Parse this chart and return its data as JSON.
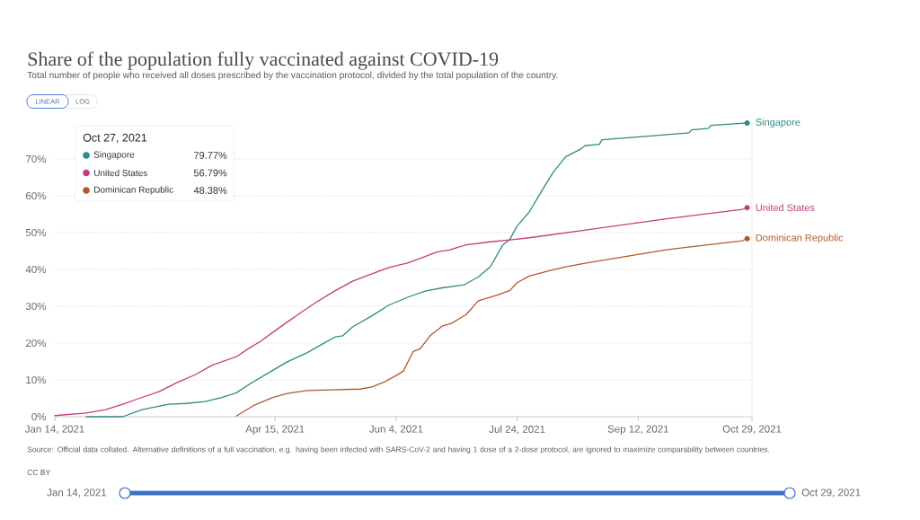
{
  "chart_data": {
    "type": "line",
    "title": "Share of the population fully vaccinated against COVID-19",
    "subtitle": "Total number of people who received all doses prescribed by the vaccination protocol, divided by the total population of the country.",
    "series": [
      {
        "name": "Singapore",
        "color": "#2e8a84",
        "x": [
          "2021-01-27",
          "2021-02-11",
          "2021-02-19",
          "2021-02-24",
          "2021-03-02",
          "2021-03-09",
          "2021-03-17",
          "2021-03-24",
          "2021-03-30",
          "2021-04-05",
          "2021-04-12",
          "2021-04-20",
          "2021-04-28",
          "2021-05-05",
          "2021-05-10",
          "2021-05-13",
          "2021-05-17",
          "2021-05-25",
          "2021-06-01",
          "2021-06-09",
          "2021-06-16",
          "2021-06-23",
          "2021-07-02",
          "2021-07-08",
          "2021-07-13",
          "2021-07-18",
          "2021-07-21",
          "2021-07-24",
          "2021-07-29",
          "2021-08-03",
          "2021-08-08",
          "2021-08-13",
          "2021-08-19",
          "2021-08-21",
          "2021-08-27",
          "2021-08-28",
          "2021-09-16",
          "2021-10-03",
          "2021-10-04",
          "2021-10-11",
          "2021-10-12",
          "2021-10-27"
        ],
        "values": [
          0,
          0,
          1.9,
          2.6,
          3.4,
          3.6,
          4.1,
          5.2,
          6.5,
          9.1,
          11.8,
          14.9,
          17.3,
          19.9,
          21.7,
          22.0,
          24.4,
          27.4,
          30.3,
          32.5,
          34.1,
          35.0,
          35.8,
          38.0,
          40.8,
          46.6,
          48.2,
          51.8,
          55.6,
          61.2,
          66.5,
          70.6,
          72.6,
          73.6,
          74.0,
          75.2,
          76.2,
          77.1,
          77.9,
          78.3,
          79.1,
          79.77
        ]
      },
      {
        "name": "United States",
        "color": "#c23c7e",
        "x": [
          "2021-01-14",
          "2021-01-27",
          "2021-02-04",
          "2021-02-11",
          "2021-02-18",
          "2021-02-26",
          "2021-03-05",
          "2021-03-13",
          "2021-03-20",
          "2021-03-30",
          "2021-04-04",
          "2021-04-09",
          "2021-04-14",
          "2021-04-20",
          "2021-04-25",
          "2021-05-02",
          "2021-05-10",
          "2021-05-17",
          "2021-05-25",
          "2021-06-01",
          "2021-06-09",
          "2021-06-16",
          "2021-06-21",
          "2021-06-26",
          "2021-07-03",
          "2021-07-13",
          "2021-07-21",
          "2021-07-29",
          "2021-08-20",
          "2021-09-23",
          "2021-10-25",
          "2021-10-27"
        ],
        "values": [
          0.3,
          1.0,
          1.9,
          3.4,
          5.0,
          6.8,
          9.1,
          11.4,
          14.0,
          16.3,
          18.5,
          20.5,
          22.9,
          25.7,
          28.0,
          31.1,
          34.3,
          36.8,
          38.8,
          40.5,
          41.8,
          43.5,
          44.8,
          45.3,
          46.7,
          47.5,
          48.0,
          48.6,
          50.6,
          53.7,
          56.3,
          56.79
        ]
      },
      {
        "name": "Dominican Republic",
        "color": "#b3582a",
        "x": [
          "2021-03-30",
          "2021-04-06",
          "2021-04-14",
          "2021-04-20",
          "2021-04-28",
          "2021-05-07",
          "2021-05-20",
          "2021-05-25",
          "2021-05-30",
          "2021-06-04",
          "2021-06-07",
          "2021-06-11",
          "2021-06-14",
          "2021-06-18",
          "2021-06-23",
          "2021-06-27",
          "2021-07-03",
          "2021-07-08",
          "2021-07-16",
          "2021-07-21",
          "2021-07-24",
          "2021-07-29",
          "2021-08-06",
          "2021-08-13",
          "2021-08-21",
          "2021-09-23",
          "2021-10-25",
          "2021-10-27"
        ],
        "values": [
          0.2,
          3.0,
          5.2,
          6.3,
          7.1,
          7.3,
          7.5,
          8.1,
          9.4,
          11.2,
          12.4,
          17.7,
          18.5,
          22.0,
          24.6,
          25.4,
          27.8,
          31.5,
          33.1,
          34.3,
          36.4,
          38.2,
          39.6,
          40.7,
          41.7,
          45.3,
          47.8,
          48.38
        ]
      }
    ],
    "xlim": [
      "2021-01-14",
      "2021-10-29"
    ],
    "xticks": [
      {
        "value": "2021-01-14",
        "label": "Jan 14, 2021"
      },
      {
        "value": "2021-04-15",
        "label": "Apr 15, 2021"
      },
      {
        "value": "2021-06-04",
        "label": "Jun 4, 2021"
      },
      {
        "value": "2021-07-24",
        "label": "Jul 24, 2021"
      },
      {
        "value": "2021-09-12",
        "label": "Sep 12, 2021"
      },
      {
        "value": "2021-10-29",
        "label": "Oct 29, 2021"
      }
    ],
    "ylim": [
      0,
      80
    ],
    "yticks": [
      {
        "value": 0,
        "label": "0%"
      },
      {
        "value": 10,
        "label": "10%"
      },
      {
        "value": 20,
        "label": "20%"
      },
      {
        "value": 30,
        "label": "30%"
      },
      {
        "value": 40,
        "label": "40%"
      },
      {
        "value": 50,
        "label": "50%"
      },
      {
        "value": 60,
        "label": "60%"
      },
      {
        "value": 70,
        "label": "70%"
      }
    ],
    "grid": "y",
    "legend": "top left",
    "annotations": [
      "LINEAR",
      "LOG",
      "Oct 27, 2021",
      "79.77%",
      "56.79%",
      "48.38%",
      "Source: Official data collated. Alternative definitions of a full vaccination, e.g. having been infected with SARS-CoV-2 and having 1 dose of a 2-dose protocol, are ignored to maximize comparability between countries.",
      "CC BY",
      "Jan 14, 2021",
      "Oct 29, 2021"
    ]
  }
}
